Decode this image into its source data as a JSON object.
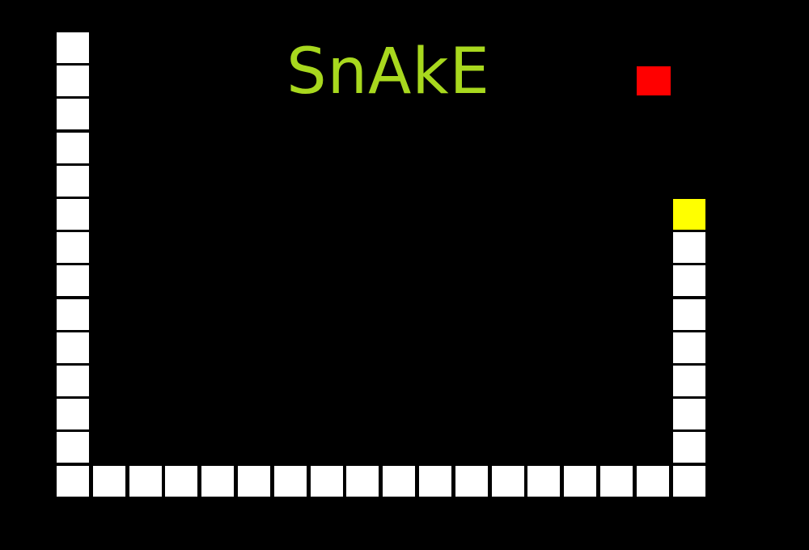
{
  "title": "SnAkE",
  "colors": {
    "background": "#000000",
    "title": "#a8d81e",
    "snake_body": "#ffffff",
    "snake_head": "#ffff00",
    "food": "#ff0000"
  },
  "grid": {
    "columns": 18,
    "rows": 14
  },
  "food": {
    "col": 16,
    "row": 1
  },
  "snake": {
    "direction": "up",
    "segments": [
      [
        17,
        5
      ],
      [
        17,
        6
      ],
      [
        17,
        7
      ],
      [
        17,
        8
      ],
      [
        17,
        9
      ],
      [
        17,
        10
      ],
      [
        17,
        11
      ],
      [
        17,
        12
      ],
      [
        17,
        13
      ],
      [
        16,
        13
      ],
      [
        15,
        13
      ],
      [
        14,
        13
      ],
      [
        13,
        13
      ],
      [
        12,
        13
      ],
      [
        11,
        13
      ],
      [
        10,
        13
      ],
      [
        9,
        13
      ],
      [
        8,
        13
      ],
      [
        7,
        13
      ],
      [
        6,
        13
      ],
      [
        5,
        13
      ],
      [
        4,
        13
      ],
      [
        3,
        13
      ],
      [
        2,
        13
      ],
      [
        1,
        13
      ],
      [
        0,
        13
      ],
      [
        0,
        12
      ],
      [
        0,
        11
      ],
      [
        0,
        10
      ],
      [
        0,
        9
      ],
      [
        0,
        8
      ],
      [
        0,
        7
      ],
      [
        0,
        6
      ],
      [
        0,
        5
      ],
      [
        0,
        4
      ],
      [
        0,
        3
      ],
      [
        0,
        2
      ],
      [
        0,
        1
      ],
      [
        0,
        0
      ]
    ]
  }
}
